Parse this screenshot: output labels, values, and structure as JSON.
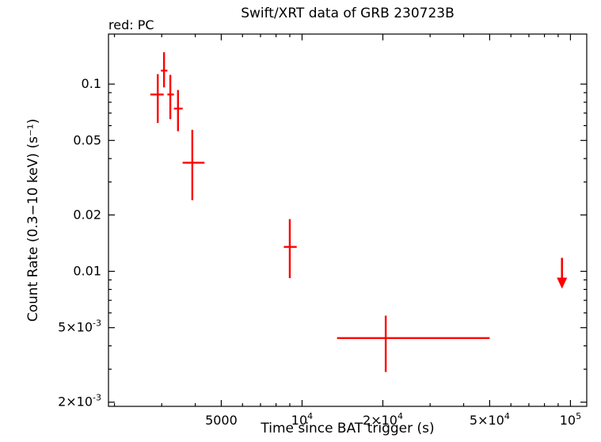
{
  "chart_data": {
    "type": "scatter",
    "title": "Swift/XRT data of GRB 230723B",
    "legend": {
      "text": "red: PC",
      "position": "top-left"
    },
    "xlabel": "Time since BAT trigger (s)",
    "ylabel": "Count Rate (0.3−10 keV) (s⁻¹)",
    "xscale": "log",
    "yscale": "log",
    "grid": false,
    "color": "#ff0000",
    "xlim": [
      1900,
      115000
    ],
    "ylim": [
      0.0019,
      0.185
    ],
    "x_ticks": [
      {
        "v": 5000,
        "base": "5000"
      },
      {
        "v": 10000,
        "base": "10",
        "exp": "4"
      },
      {
        "v": 20000,
        "base": "2×10",
        "exp": "4"
      },
      {
        "v": 50000,
        "base": "5×10",
        "exp": "4"
      },
      {
        "v": 100000,
        "base": "10",
        "exp": "5"
      }
    ],
    "y_ticks": [
      {
        "v": 0.1,
        "base": "0.1"
      },
      {
        "v": 0.05,
        "base": "0.05"
      },
      {
        "v": 0.02,
        "base": "0.02"
      },
      {
        "v": 0.01,
        "base": "0.01"
      },
      {
        "v": 0.005,
        "base": "5×10",
        "exp": "-3"
      },
      {
        "v": 0.002,
        "base": "2×10",
        "exp": "-3"
      }
    ],
    "series_name": "PC",
    "points": [
      {
        "t": 2900,
        "t_lo": 2720,
        "t_hi": 3050,
        "rate": 0.088,
        "rate_lo": 0.062,
        "rate_hi": 0.113
      },
      {
        "t": 3060,
        "t_lo": 2980,
        "t_hi": 3150,
        "rate": 0.118,
        "rate_lo": 0.096,
        "rate_hi": 0.148
      },
      {
        "t": 3230,
        "t_lo": 3150,
        "t_hi": 3330,
        "rate": 0.088,
        "rate_lo": 0.065,
        "rate_hi": 0.112
      },
      {
        "t": 3450,
        "t_lo": 3330,
        "t_hi": 3590,
        "rate": 0.074,
        "rate_lo": 0.056,
        "rate_hi": 0.093
      },
      {
        "t": 3900,
        "t_lo": 3590,
        "t_hi": 4330,
        "rate": 0.038,
        "rate_lo": 0.024,
        "rate_hi": 0.057
      },
      {
        "t": 9000,
        "t_lo": 8550,
        "t_hi": 9550,
        "rate": 0.0135,
        "rate_lo": 0.0092,
        "rate_hi": 0.019
      },
      {
        "t": 20500,
        "t_lo": 13500,
        "t_hi": 50000,
        "rate": 0.0044,
        "rate_lo": 0.0029,
        "rate_hi": 0.0058
      }
    ],
    "upper_limits": [
      {
        "t": 93000,
        "rate": 0.0118
      }
    ]
  }
}
